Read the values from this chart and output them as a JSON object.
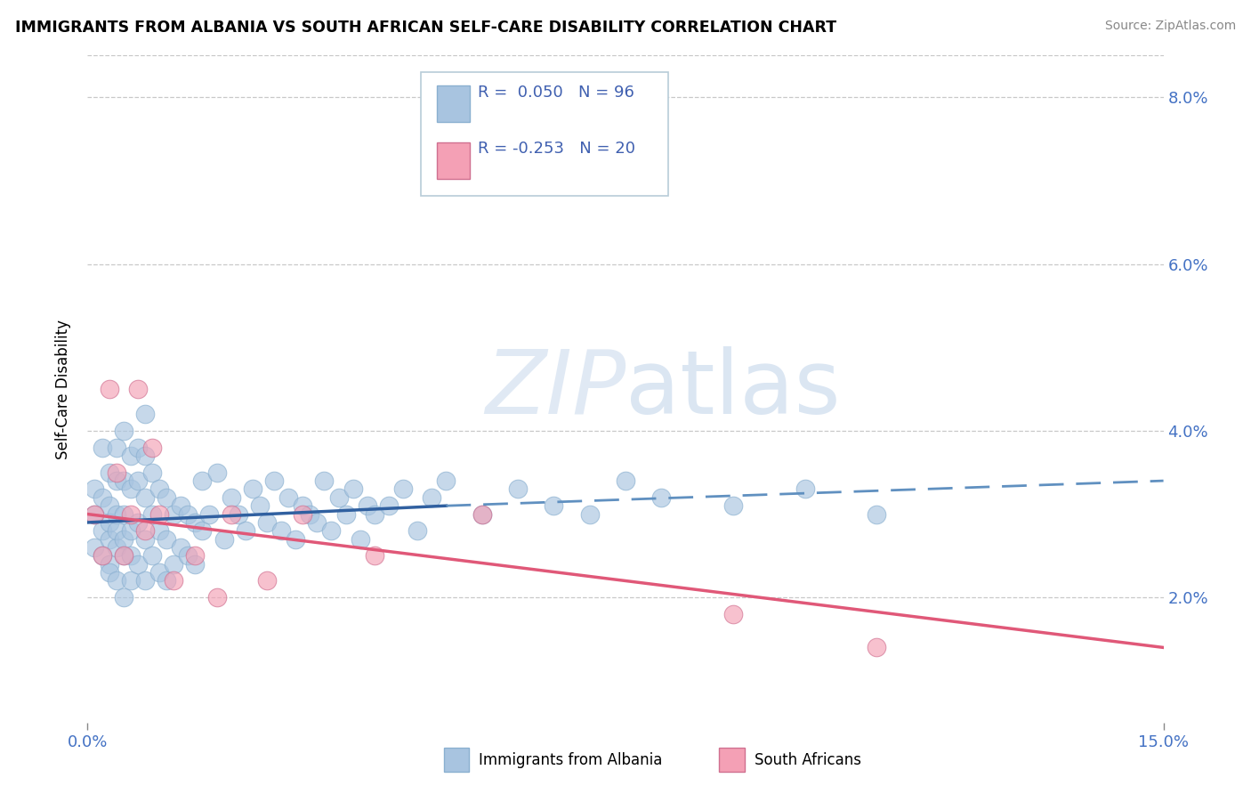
{
  "title": "IMMIGRANTS FROM ALBANIA VS SOUTH AFRICAN SELF-CARE DISABILITY CORRELATION CHART",
  "source": "Source: ZipAtlas.com",
  "ylabel": "Self-Care Disability",
  "xlim": [
    0.0,
    0.15
  ],
  "ylim": [
    0.005,
    0.085
  ],
  "blue_color": "#a8c4e0",
  "pink_color": "#f4a0b5",
  "line_blue_solid": "#3060a0",
  "line_blue_dash": "#6090c0",
  "line_pink": "#e05878",
  "blue_N": 96,
  "pink_N": 20,
  "blue_R": 0.05,
  "pink_R": -0.253,
  "legend_label1": "Immigrants from Albania",
  "legend_label2": "South Africans",
  "blue_scatter_x": [
    0.001,
    0.001,
    0.001,
    0.002,
    0.002,
    0.002,
    0.002,
    0.003,
    0.003,
    0.003,
    0.003,
    0.003,
    0.003,
    0.004,
    0.004,
    0.004,
    0.004,
    0.004,
    0.004,
    0.005,
    0.005,
    0.005,
    0.005,
    0.005,
    0.005,
    0.006,
    0.006,
    0.006,
    0.006,
    0.006,
    0.007,
    0.007,
    0.007,
    0.007,
    0.008,
    0.008,
    0.008,
    0.008,
    0.008,
    0.009,
    0.009,
    0.009,
    0.01,
    0.01,
    0.01,
    0.011,
    0.011,
    0.011,
    0.012,
    0.012,
    0.013,
    0.013,
    0.014,
    0.014,
    0.015,
    0.015,
    0.016,
    0.016,
    0.017,
    0.018,
    0.019,
    0.02,
    0.021,
    0.022,
    0.023,
    0.024,
    0.025,
    0.026,
    0.027,
    0.028,
    0.029,
    0.03,
    0.031,
    0.032,
    0.033,
    0.034,
    0.035,
    0.036,
    0.037,
    0.038,
    0.039,
    0.04,
    0.042,
    0.044,
    0.046,
    0.048,
    0.05,
    0.055,
    0.06,
    0.065,
    0.07,
    0.075,
    0.08,
    0.09,
    0.1,
    0.11
  ],
  "blue_scatter_y": [
    0.03,
    0.033,
    0.026,
    0.028,
    0.032,
    0.025,
    0.038,
    0.027,
    0.031,
    0.024,
    0.035,
    0.029,
    0.023,
    0.026,
    0.03,
    0.034,
    0.022,
    0.038,
    0.028,
    0.025,
    0.03,
    0.034,
    0.02,
    0.04,
    0.027,
    0.022,
    0.028,
    0.033,
    0.037,
    0.025,
    0.024,
    0.029,
    0.034,
    0.038,
    0.022,
    0.027,
    0.032,
    0.037,
    0.042,
    0.025,
    0.03,
    0.035,
    0.023,
    0.028,
    0.033,
    0.022,
    0.027,
    0.032,
    0.024,
    0.03,
    0.026,
    0.031,
    0.025,
    0.03,
    0.024,
    0.029,
    0.028,
    0.034,
    0.03,
    0.035,
    0.027,
    0.032,
    0.03,
    0.028,
    0.033,
    0.031,
    0.029,
    0.034,
    0.028,
    0.032,
    0.027,
    0.031,
    0.03,
    0.029,
    0.034,
    0.028,
    0.032,
    0.03,
    0.033,
    0.027,
    0.031,
    0.03,
    0.031,
    0.033,
    0.028,
    0.032,
    0.034,
    0.03,
    0.033,
    0.031,
    0.03,
    0.034,
    0.032,
    0.031,
    0.033,
    0.03
  ],
  "pink_scatter_x": [
    0.001,
    0.002,
    0.003,
    0.004,
    0.005,
    0.006,
    0.007,
    0.008,
    0.009,
    0.01,
    0.012,
    0.015,
    0.018,
    0.02,
    0.025,
    0.03,
    0.04,
    0.055,
    0.09,
    0.11
  ],
  "pink_scatter_y": [
    0.03,
    0.025,
    0.045,
    0.035,
    0.025,
    0.03,
    0.045,
    0.028,
    0.038,
    0.03,
    0.022,
    0.025,
    0.02,
    0.03,
    0.022,
    0.03,
    0.025,
    0.03,
    0.018,
    0.014
  ],
  "blue_line_x0": 0.0,
  "blue_line_x_solid_end": 0.05,
  "blue_line_x1": 0.15,
  "blue_line_y0": 0.029,
  "blue_line_y_solid_end": 0.031,
  "blue_line_y1": 0.034,
  "pink_line_x0": 0.0,
  "pink_line_x1": 0.15,
  "pink_line_y0": 0.03,
  "pink_line_y1": 0.014
}
